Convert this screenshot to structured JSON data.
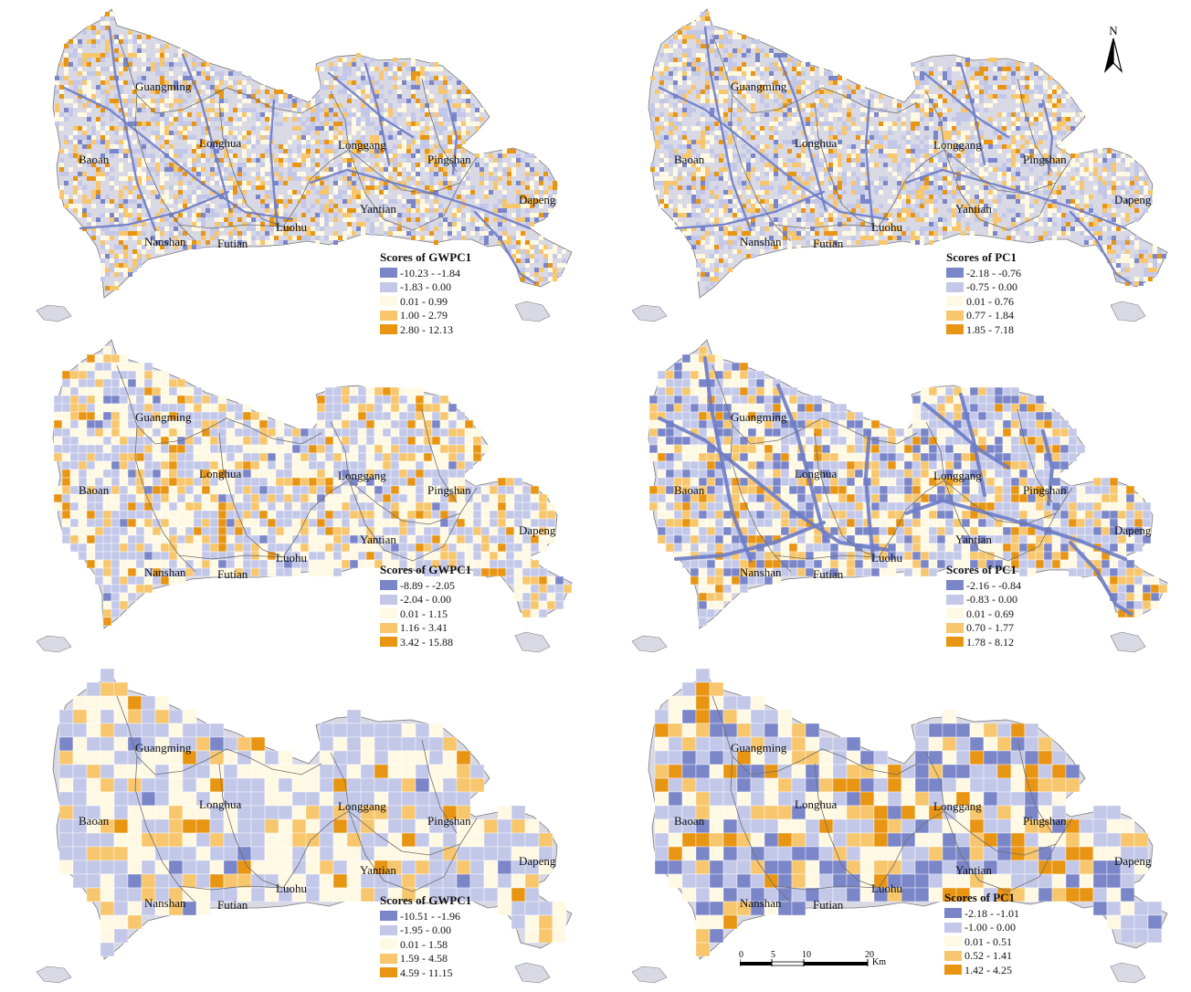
{
  "map": {
    "colors": {
      "land": "#d9d9e6",
      "border": "#7a7a7a",
      "class1": "#7b86c9",
      "class2": "#c3c8e9",
      "class3": "#fff9e4",
      "class4": "#f7c66d",
      "class5": "#e89514",
      "road": "#6d7cc7"
    },
    "districts": [
      "Guangming",
      "Baoan",
      "Longhua",
      "Longgang",
      "Pingshan",
      "Dapeng",
      "Yantian",
      "Luohu",
      "Futian",
      "Nanshan"
    ],
    "panels": [
      {
        "id": "top-left",
        "legend": {
          "title": "Scores of GWPC1",
          "items": [
            "-10.23 - -1.84",
            "-1.83 - 0.00",
            "0.01 - 0.99",
            "1.00 - 2.79",
            "2.80 - 12.13"
          ]
        }
      },
      {
        "id": "top-right",
        "legend": {
          "title": "Scores of PC1",
          "items": [
            "-2.18 - -0.76",
            "-0.75 - 0.00",
            "0.01 - 0.76",
            "0.77 - 1.84",
            "1.85 - 7.18"
          ]
        }
      },
      {
        "id": "middle-left",
        "legend": {
          "title": "Scores of GWPC1",
          "items": [
            "-8.89 - -2.05",
            "-2.04 - 0.00",
            "0.01 - 1.15",
            "1.16 - 3.41",
            "3.42 - 15.88"
          ]
        }
      },
      {
        "id": "middle-right",
        "legend": {
          "title": "Scores of PC1",
          "items": [
            "-2.16 - -0.84",
            "-0.83 - 0.00",
            "0.01 - 0.69",
            "0.70 - 1.77",
            "1.78 - 8.12"
          ]
        }
      },
      {
        "id": "bottom-left",
        "legend": {
          "title": "Scores of GWPC1",
          "items": [
            "-10.51 - -1.96",
            "-1.95 - 0.00",
            "0.01 - 1.58",
            "1.59 - 4.58",
            "4.59 - 11.15"
          ]
        }
      },
      {
        "id": "bottom-right",
        "legend": {
          "title": "Scores of PC1",
          "items": [
            "-2.18 - -1.01",
            "-1.00 - 0.00",
            "0.01 - 0.51",
            "0.52 - 1.41",
            "1.42 - 4.25"
          ]
        }
      }
    ],
    "north_arrow": "N",
    "scale_bar": {
      "ticks": [
        "0",
        "5",
        "10",
        "20"
      ],
      "unit": "Km"
    }
  }
}
